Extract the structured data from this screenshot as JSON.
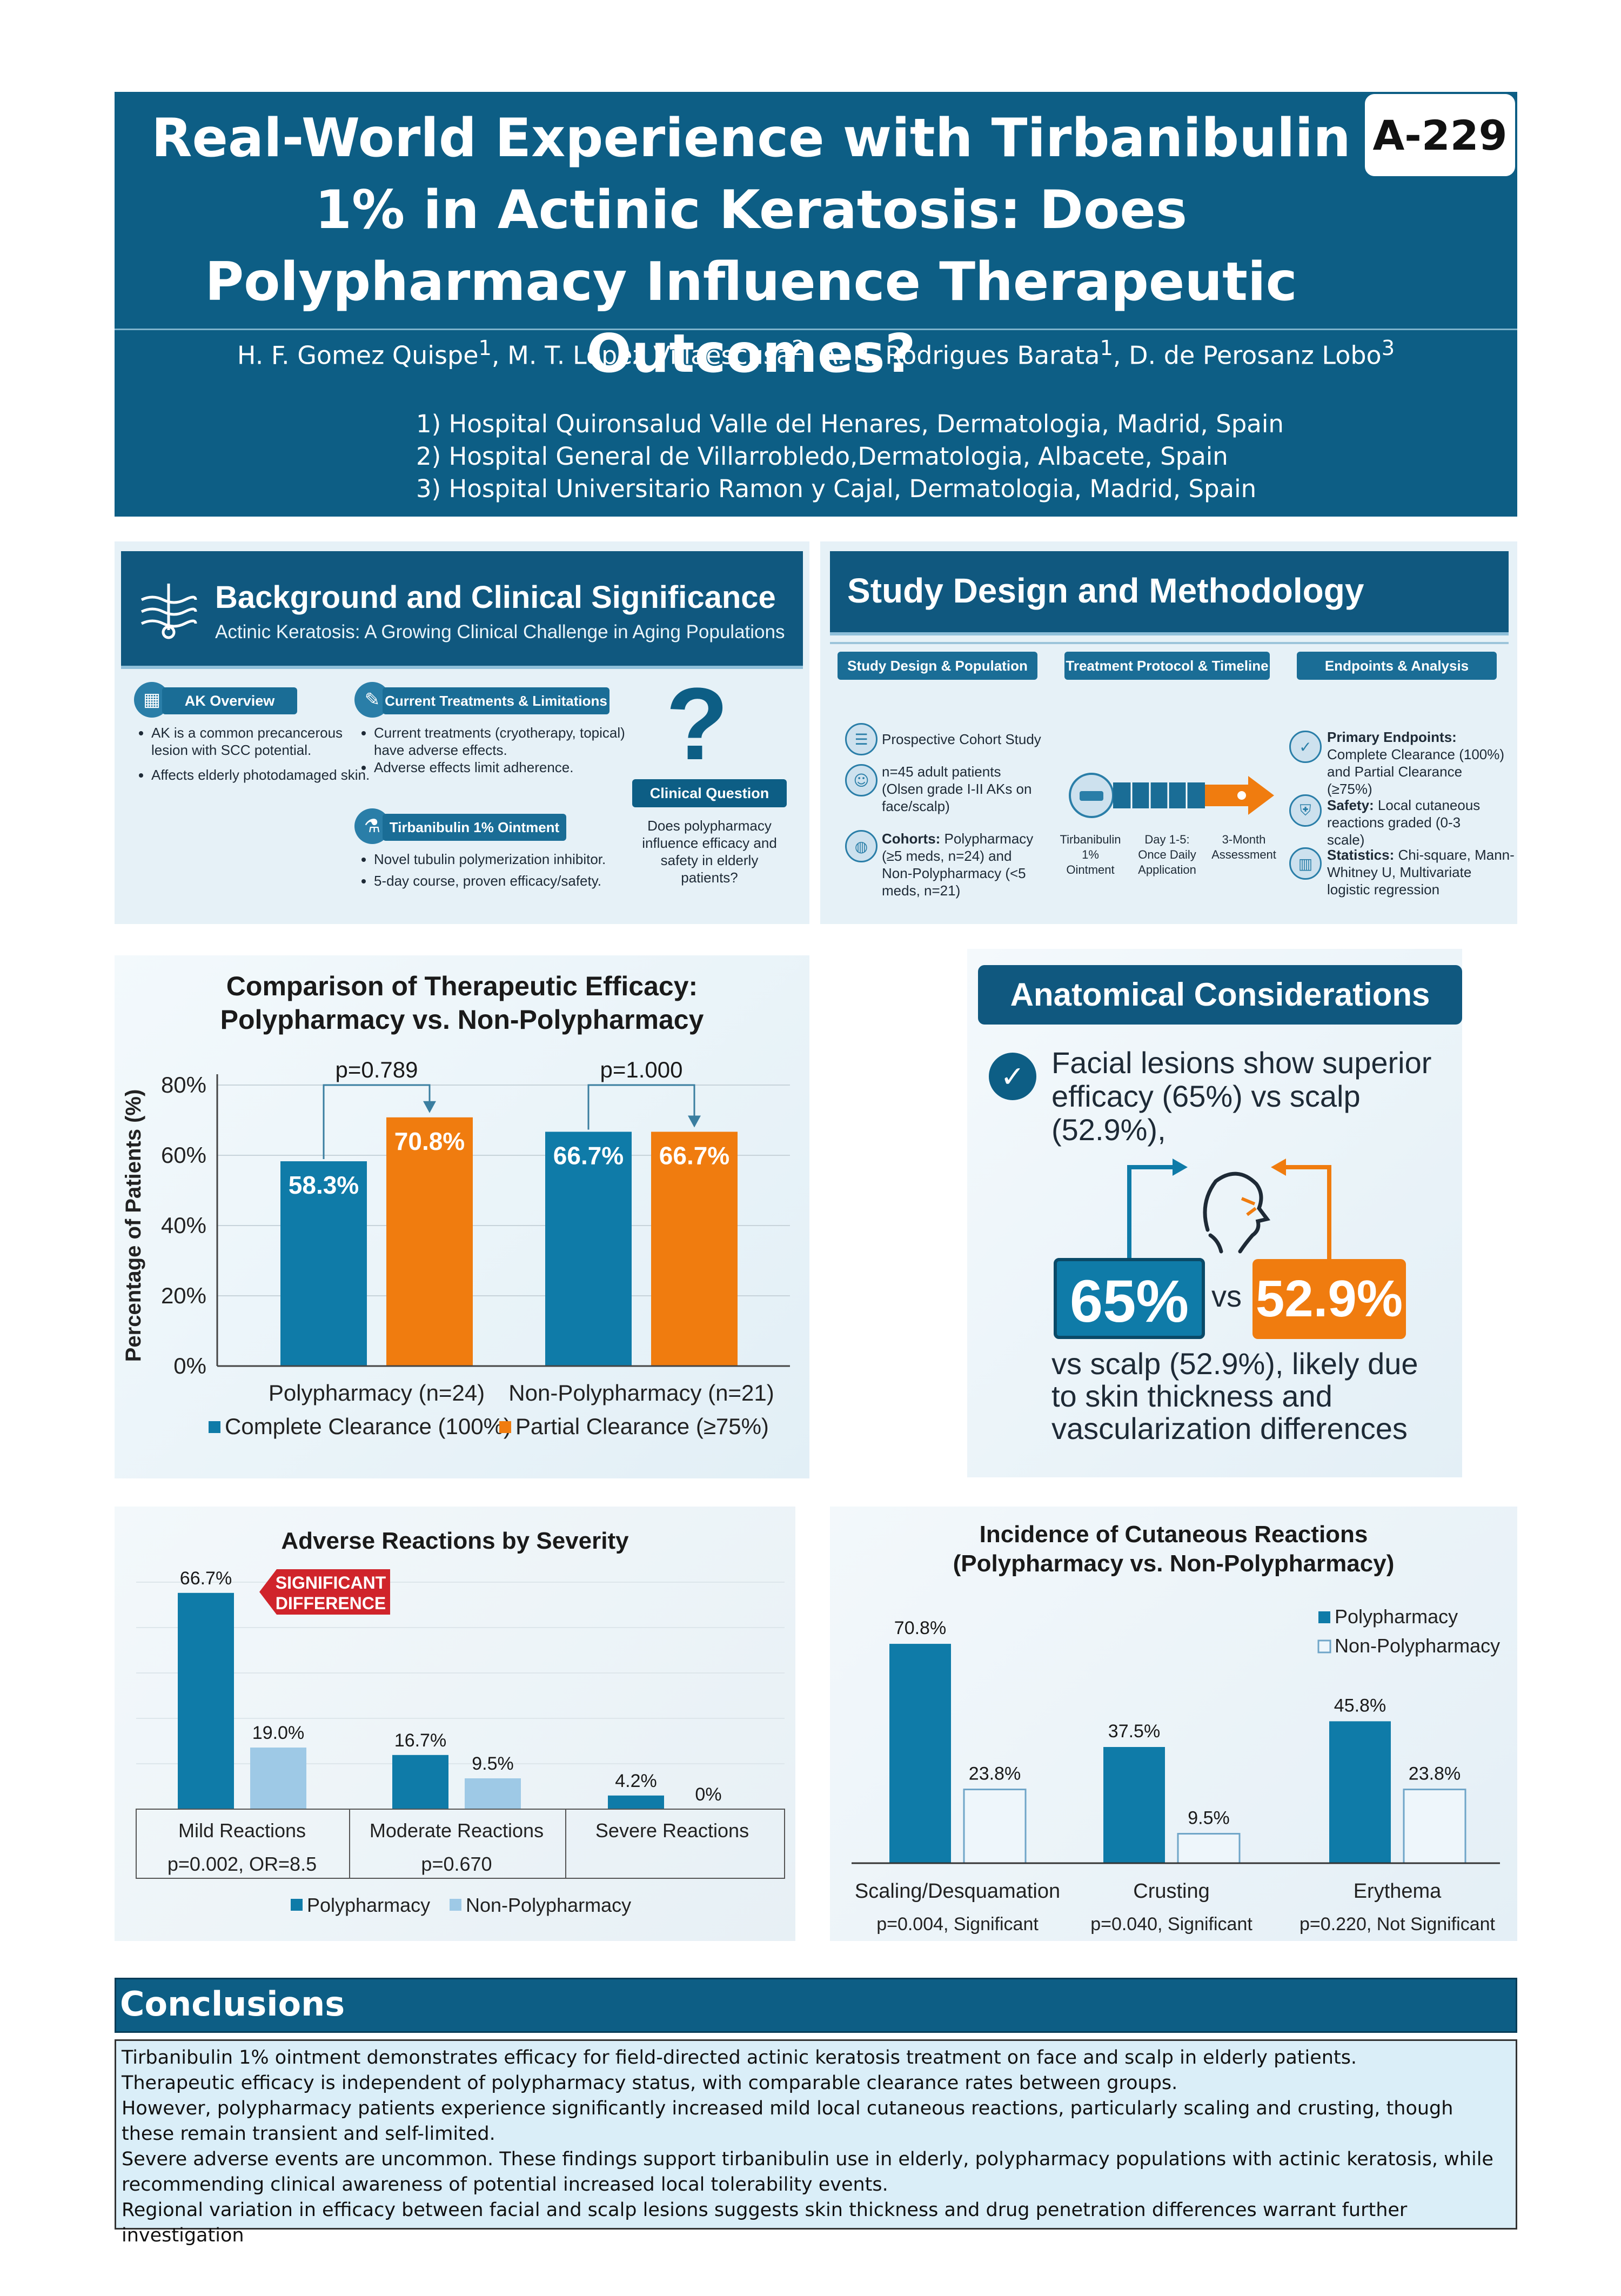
{
  "poster": {
    "title": "Real-World Experience with Tirbanibulin 1% in Actinic Keratosis: Does Polypharmacy Influence Therapeutic Outcomes?",
    "badge": "A-229",
    "authors": [
      {
        "name": "H. F. Gomez Quispe",
        "sup": "1"
      },
      {
        "name": "M. T. Lopez Villaescusa",
        "sup": "2"
      },
      {
        "name": "A. R. Rodrigues Barata",
        "sup": "1"
      },
      {
        "name": "D. de Perosanz Lobo",
        "sup": "3"
      }
    ],
    "affiliations": [
      "1) Hospital Quironsalud Valle del Henares, Dermatologia, Madrid, Spain",
      "2) Hospital General de Villarrobledo,Dermatologia, Albacete, Spain",
      "3) Hospital Universitario Ramon y Cajal, Dermatologia, Madrid, Spain"
    ]
  },
  "background": {
    "title": "Background and Clinical Significance",
    "subtitle": "Actinic Keratosis: A Growing Clinical Challenge in Aging Populations",
    "ak_overview": {
      "label": "AK Overview",
      "bullets": [
        "AK is a common precancerous lesion with SCC potential.",
        "Affects elderly photodamaged skin."
      ]
    },
    "current_treatments": {
      "label": "Current Treatments & Limitations",
      "bullets": [
        "Current treatments (cryotherapy, topical) have adverse effects.",
        "Adverse effects limit adherence."
      ]
    },
    "tirbanibulin": {
      "label": "Tirbanibulin 1% Ointment",
      "bullets": [
        "Novel tubulin polymerization inhibitor.",
        "5-day course, proven efficacy/safety."
      ]
    },
    "clinical_question": {
      "label": "Clinical Question",
      "text": "Does polypharmacy influence efficacy and safety in elderly patients?"
    }
  },
  "study_design": {
    "title": "Study Design and Methodology",
    "tabs": [
      "Study Design & Population",
      "Treatment Protocol & Timeline",
      "Endpoints & Analysis"
    ],
    "population": [
      {
        "label": "",
        "text": "Prospective Cohort Study"
      },
      {
        "label": "",
        "text": "n=45 adult patients (Olsen grade I-II AKs on face/scalp)"
      },
      {
        "label": "Cohorts:",
        "text": " Polypharmacy (≥5 meds, n=24) and Non-Polypharmacy (<5 meds, n=21)"
      }
    ],
    "timeline": [
      "Tirbanibulin 1% Ointment",
      "Day 1-5: Once Daily Application",
      "3-Month Assessment"
    ],
    "endpoints": [
      {
        "label": "Primary Endpoints:",
        "text": " Complete Clearance (100%) and Partial Clearance (≥75%)"
      },
      {
        "label": "Safety:",
        "text": " Local cutaneous reactions graded (0-3 scale)"
      },
      {
        "label": "Statistics:",
        "text": " Chi-square, Mann-Whitney U, Multivariate logistic regression"
      }
    ]
  },
  "anatomical": {
    "title": "Anatomical Considerations",
    "line1": "Facial lesions show superior efficacy (65%) vs scalp (52.9%),",
    "face_value": "65%",
    "vs": "vs",
    "scalp_value": "52.9%",
    "line2": "vs scalp (52.9%), likely due to skin thickness and vascularization differences"
  },
  "conclusions": {
    "title": "Conclusions",
    "lines": [
      "Tirbanibulin 1% ointment demonstrates efficacy for field-directed actinic keratosis treatment on face and scalp in elderly patients.",
      "Therapeutic efficacy is independent of polypharmacy status, with comparable clearance rates between groups.",
      "However, polypharmacy patients experience significantly increased mild local cutaneous  reactions, particularly scaling and crusting, though these remain transient and self-limited.",
      "Severe adverse events are uncommon. These findings support tirbanibulin use in elderly, polypharmacy populations with actinic keratosis, while recommending clinical awareness of potential increased local tolerability events.",
      "Regional variation in efficacy between facial and scalp lesions suggests skin thickness and drug penetration differences warrant further investigation"
    ]
  },
  "colors": {
    "navy": "#0d5e85",
    "teal": "#0f7ba8",
    "orange": "#f07c0f",
    "light_blue": "#9ec9e6",
    "pale": "#eef6fb"
  },
  "chart_data": [
    {
      "type": "bar",
      "title": "Comparison of Therapeutic Efficacy: Polypharmacy vs. Non-Polypharmacy",
      "categories": [
        "Polypharmacy (n=24)",
        "Non-Polypharmacy (n=21)"
      ],
      "series": [
        {
          "name": "Complete Clearance (100%)",
          "values": [
            58.3,
            66.7
          ],
          "labels": [
            "58.3%",
            "66.7%"
          ],
          "color": "#0f7ba8"
        },
        {
          "name": "Partial Clearance (≥75%)",
          "values": [
            70.8,
            66.7
          ],
          "labels": [
            "70.8%",
            "66.7%"
          ],
          "color": "#f07c0f"
        }
      ],
      "pvalues": [
        "p=0.789",
        "p=1.000"
      ],
      "ylabel": "Percentage of Patients (%)",
      "yticks": [
        "0%",
        "20%",
        "40%",
        "60%",
        "80%"
      ],
      "ylim": [
        0,
        80
      ],
      "grid": true,
      "legend": "bottom"
    },
    {
      "type": "bar",
      "title": "Adverse Reactions by Severity",
      "categories": [
        "Mild Reactions",
        "Moderate Reactions",
        "Severe Reactions"
      ],
      "category_stats": [
        "p=0.002, OR=8.5",
        "p=0.670",
        ""
      ],
      "series": [
        {
          "name": "Polypharmacy",
          "values": [
            66.7,
            16.7,
            4.2
          ],
          "labels": [
            "66.7%",
            "16.7%",
            "4.2%"
          ],
          "color": "#0f7ba8"
        },
        {
          "name": "Non-Polypharmacy",
          "values": [
            19.0,
            9.5,
            0
          ],
          "labels": [
            "19.0%",
            "9.5%",
            "0%"
          ],
          "color": "#9ec9e6"
        }
      ],
      "callout": "SIGNIFICANT DIFFERENCE",
      "ylim": [
        0,
        70
      ],
      "grid": true,
      "legend": "bottom"
    },
    {
      "type": "bar",
      "title": "Incidence of Cutaneous Reactions (Polypharmacy vs. Non-Polypharmacy)",
      "categories": [
        "Scaling/Desquamation",
        "Crusting",
        "Erythema"
      ],
      "category_stats": [
        "p=0.004, Significant",
        "p=0.040, Significant",
        "p=0.220, Not Significant"
      ],
      "series": [
        {
          "name": "Polypharmacy",
          "values": [
            70.8,
            37.5,
            45.8
          ],
          "labels": [
            "70.8%",
            "37.5%",
            "45.8%"
          ],
          "color": "#0f7ba8"
        },
        {
          "name": "Non-Polypharmacy",
          "values": [
            23.8,
            9.5,
            23.8
          ],
          "labels": [
            "23.8%",
            "9.5%",
            "23.8%"
          ],
          "color": "#eef6fb"
        }
      ],
      "ylim": [
        0,
        75
      ],
      "grid": false,
      "legend": "top-right"
    }
  ]
}
